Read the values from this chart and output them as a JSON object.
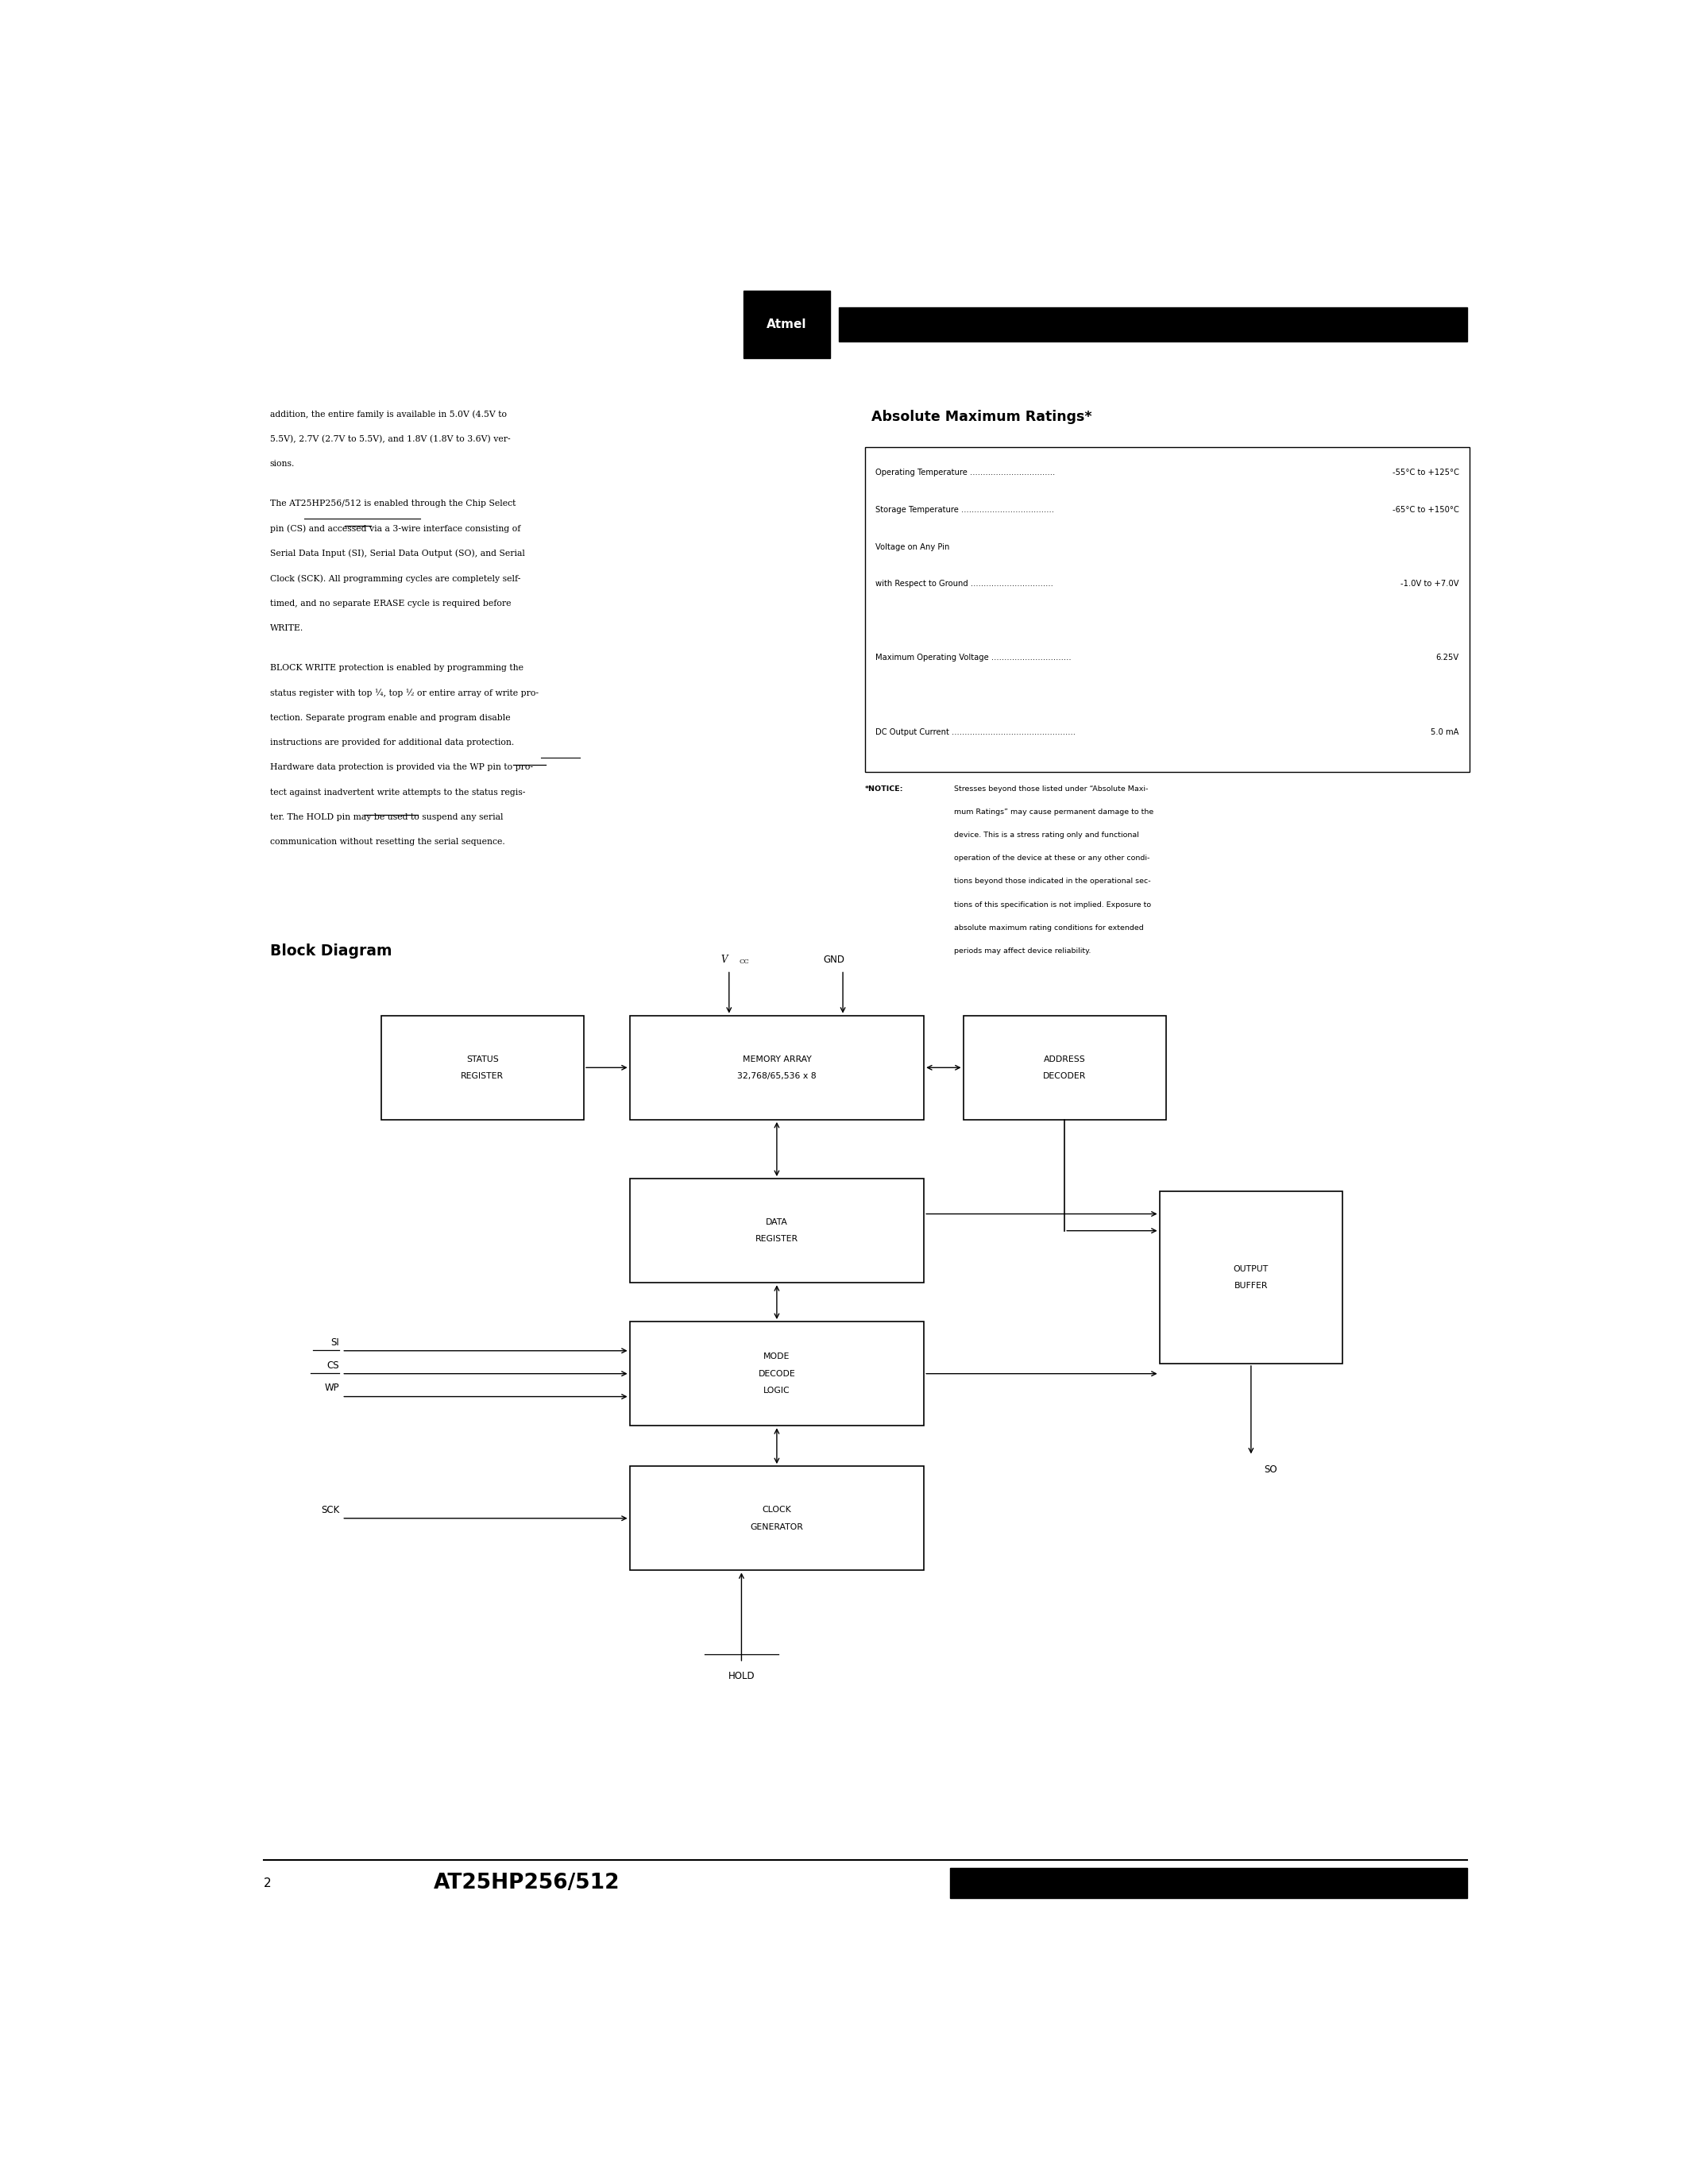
{
  "page_width": 21.25,
  "page_height": 27.5,
  "bg_color": "#ffffff",
  "text_color": "#000000",
  "header_bar_color": "#000000",
  "footer_bar_color": "#000000",
  "left_text_lines": [
    "addition, the entire family is available in 5.0V (4.5V to",
    "5.5V), 2.7V (2.7V to 5.5V), and 1.8V (1.8V to 3.6V) ver-",
    "sions.",
    "",
    "The AT25HP256/512 is enabled through the Chip Select",
    "pin (CS) and accessed via a 3-wire interface consisting of",
    "Serial Data Input (SI), Serial Data Output (SO), and Serial",
    "Clock (SCK). All programming cycles are completely self-",
    "timed, and no separate ERASE cycle is required before",
    "WRITE.",
    "",
    "BLOCK WRITE protection is enabled by programming the",
    "status register with top ¼, top ½ or entire array of write pro-",
    "tection. Separate program enable and program disable",
    "instructions are provided for additional data protection.",
    "Hardware data protection is provided via the WP pin to pro-",
    "tect against inadvertent write attempts to the status regis-",
    "ter. The HOLD pin may be used to suspend any serial",
    "communication without resetting the serial sequence."
  ],
  "abs_max_title": "Absolute Maximum Ratings*",
  "abs_max_rows": [
    [
      "Operating Temperature .................................",
      "-55°C to +125°C"
    ],
    [
      "Storage Temperature ....................................",
      "-65°C to +150°C"
    ],
    [
      "Voltage on Any Pin",
      ""
    ],
    [
      "with Respect to Ground ................................",
      "-1.0V to +7.0V"
    ],
    [
      "",
      ""
    ],
    [
      "Maximum Operating Voltage ...............................",
      "6.25V"
    ],
    [
      "",
      ""
    ],
    [
      "DC Output Current ................................................",
      "5.0 mA"
    ]
  ],
  "notice_label": "*NOTICE:",
  "notice_lines": [
    "Stresses beyond those listed under “Absolute Maxi-",
    "mum Ratings” may cause permanent damage to the",
    "device. This is a stress rating only and functional",
    "operation of the device at these or any other condi-",
    "tions beyond those indicated in the operational sec-",
    "tions of this specification is not implied. Exposure to",
    "absolute maximum rating conditions for extended",
    "periods may affect device reliability."
  ],
  "block_diagram_title": "Block Diagram",
  "footer_page_num": "2",
  "footer_chip_name": "AT25HP256/512"
}
